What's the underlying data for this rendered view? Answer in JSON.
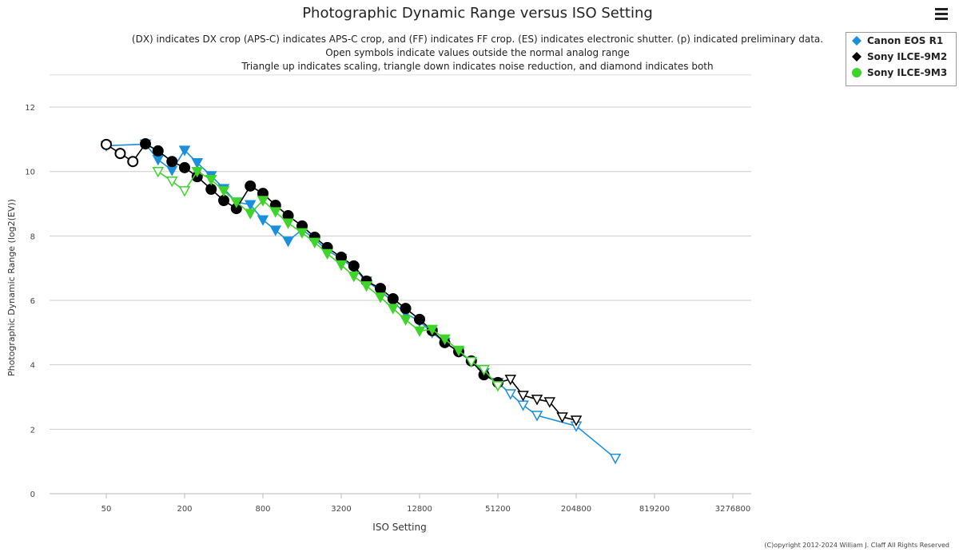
{
  "header": {
    "title": "Photographic Dynamic Range versus ISO Setting",
    "notes": [
      "(DX) indicates DX crop (APS-C) indicates APS-C crop, and (FF) indicates FF crop. (ES) indicates electronic shutter. (p) indicated preliminary data.",
      "Open symbols indicate values outside the normal analog range",
      "Triangle up indicates scaling, triangle down indicates noise reduction, and diamond indicates both"
    ],
    "menu_icon": "hamburger-icon"
  },
  "copyright": "(C)opyright 2012-2024 William J. Claff All Rights Reserved",
  "chart_data": {
    "type": "line",
    "title": "Photographic Dynamic Range versus ISO Setting",
    "xlabel": "ISO Setting",
    "ylabel": "Photographic Dynamic Range (log2(EV))",
    "xscale": "log2",
    "xticks": [
      "50",
      "200",
      "800",
      "3200",
      "12800",
      "51200",
      "204800",
      "819200",
      "3276800"
    ],
    "yticks": [
      "0",
      "2",
      "4",
      "6",
      "8",
      "10",
      "12"
    ],
    "ylim": [
      0,
      13
    ],
    "grid": true,
    "legend_position": "top-right",
    "series": [
      {
        "name": "Canon EOS R1",
        "color": "#1a8fdc",
        "points": [
          [
            50,
            10.8,
            "v"
          ],
          [
            100,
            10.85,
            "v"
          ],
          [
            125,
            10.37,
            "v"
          ],
          [
            160,
            10.04,
            "v"
          ],
          [
            200,
            10.66,
            "v"
          ],
          [
            250,
            10.27,
            "v"
          ],
          [
            320,
            9.87,
            "v"
          ],
          [
            400,
            9.47,
            "v"
          ],
          [
            500,
            9.05,
            "v"
          ],
          [
            640,
            8.97,
            "v"
          ],
          [
            800,
            8.5,
            "v"
          ],
          [
            1000,
            8.18,
            "v"
          ],
          [
            1250,
            7.84,
            "v"
          ],
          [
            1600,
            8.2,
            "v"
          ],
          [
            2000,
            7.9,
            "v"
          ],
          [
            2500,
            7.55,
            "v"
          ],
          [
            3200,
            7.3,
            "v"
          ],
          [
            4000,
            7.0,
            "v"
          ],
          [
            5000,
            6.6,
            "v"
          ],
          [
            6400,
            6.3,
            "v"
          ],
          [
            8000,
            5.95,
            "v"
          ],
          [
            10000,
            5.6,
            "v"
          ],
          [
            12800,
            5.35,
            "v"
          ],
          [
            16000,
            5.0,
            "v"
          ],
          [
            20000,
            4.7,
            "v"
          ],
          [
            25600,
            4.4,
            "v"
          ],
          [
            32000,
            4.1,
            "v"
          ],
          [
            40000,
            3.75,
            "v"
          ],
          [
            51200,
            3.45,
            "v"
          ],
          [
            64000,
            3.1,
            "vo"
          ],
          [
            80000,
            2.75,
            "vo"
          ],
          [
            102400,
            2.43,
            "vo"
          ],
          [
            204800,
            2.1,
            "vo"
          ],
          [
            409600,
            1.1,
            "vo"
          ]
        ]
      },
      {
        "name": "Sony ILCE-9M2",
        "color": "#000000",
        "points": [
          [
            50,
            10.84,
            "oo"
          ],
          [
            64,
            10.56,
            "oo"
          ],
          [
            80,
            10.31,
            "oo"
          ],
          [
            100,
            10.86,
            "o"
          ],
          [
            125,
            10.64,
            "o"
          ],
          [
            160,
            10.31,
            "o"
          ],
          [
            200,
            10.12,
            "o"
          ],
          [
            250,
            9.84,
            "o"
          ],
          [
            320,
            9.45,
            "o"
          ],
          [
            400,
            9.1,
            "o"
          ],
          [
            500,
            8.85,
            "o"
          ],
          [
            640,
            9.55,
            "o"
          ],
          [
            800,
            9.32,
            "o"
          ],
          [
            1000,
            8.95,
            "o"
          ],
          [
            1250,
            8.63,
            "o"
          ],
          [
            1600,
            8.31,
            "o"
          ],
          [
            2000,
            7.96,
            "o"
          ],
          [
            2500,
            7.64,
            "o"
          ],
          [
            3200,
            7.34,
            "o"
          ],
          [
            4000,
            7.07,
            "o"
          ],
          [
            5000,
            6.6,
            "o"
          ],
          [
            6400,
            6.37,
            "o"
          ],
          [
            8000,
            6.05,
            "o"
          ],
          [
            10000,
            5.75,
            "o"
          ],
          [
            12800,
            5.41,
            "o"
          ],
          [
            16000,
            5.06,
            "o"
          ],
          [
            20000,
            4.69,
            "o"
          ],
          [
            25600,
            4.41,
            "o"
          ],
          [
            32000,
            4.12,
            "o"
          ],
          [
            40000,
            3.69,
            "o"
          ],
          [
            51200,
            3.45,
            "o"
          ],
          [
            64000,
            3.55,
            "vo"
          ],
          [
            80000,
            3.05,
            "vo"
          ],
          [
            102400,
            2.93,
            "vo"
          ],
          [
            128000,
            2.85,
            "vo"
          ],
          [
            160000,
            2.38,
            "vo"
          ],
          [
            204800,
            2.28,
            "vo"
          ]
        ]
      },
      {
        "name": "Sony ILCE-9M3",
        "color": "#3fd42a",
        "points": [
          [
            125,
            10.0,
            "vo"
          ],
          [
            160,
            9.7,
            "vo"
          ],
          [
            200,
            9.4,
            "vo"
          ],
          [
            250,
            10.0,
            "v"
          ],
          [
            320,
            9.75,
            "v"
          ],
          [
            400,
            9.4,
            "v"
          ],
          [
            500,
            9.05,
            "v"
          ],
          [
            640,
            8.7,
            "v"
          ],
          [
            800,
            9.1,
            "v"
          ],
          [
            1000,
            8.75,
            "v"
          ],
          [
            1250,
            8.4,
            "v"
          ],
          [
            1600,
            8.1,
            "v"
          ],
          [
            2000,
            7.8,
            "v"
          ],
          [
            2500,
            7.45,
            "v"
          ],
          [
            3200,
            7.1,
            "v"
          ],
          [
            4000,
            6.75,
            "v"
          ],
          [
            5000,
            6.45,
            "v"
          ],
          [
            6400,
            6.1,
            "v"
          ],
          [
            8000,
            5.75,
            "v"
          ],
          [
            10000,
            5.4,
            "v"
          ],
          [
            12800,
            5.05,
            "v"
          ],
          [
            16000,
            5.1,
            "v"
          ],
          [
            20000,
            4.8,
            "v"
          ],
          [
            25600,
            4.45,
            "v"
          ],
          [
            32000,
            4.1,
            "vo"
          ],
          [
            40000,
            3.85,
            "vo"
          ],
          [
            51200,
            3.35,
            "vo"
          ]
        ]
      }
    ]
  }
}
